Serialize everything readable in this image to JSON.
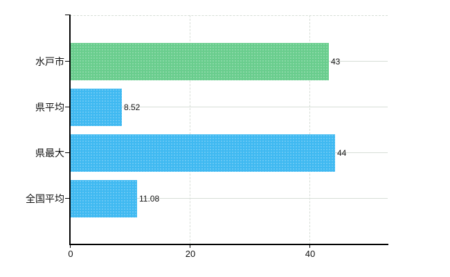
{
  "chart_data": {
    "type": "bar",
    "orientation": "horizontal",
    "title": "",
    "legend": "none",
    "grid": true,
    "categories": [
      "水戸市",
      "県平均",
      "県最大",
      "全国平均"
    ],
    "values": [
      43,
      8.52,
      44,
      11.08
    ],
    "value_labels": [
      "43",
      "8.52",
      "44",
      "11.08"
    ],
    "bar_colors": [
      "#69cd8d",
      "#3fb9f1",
      "#3fb9f1",
      "#3fb9f1"
    ],
    "x_ticks": [
      "0",
      "20",
      "40"
    ],
    "xlim": [
      0,
      52.9
    ],
    "gridline_color": "#d6ddd6",
    "axis_color": "#000000",
    "background_color": "#ffffff",
    "text_color": "#111111"
  }
}
